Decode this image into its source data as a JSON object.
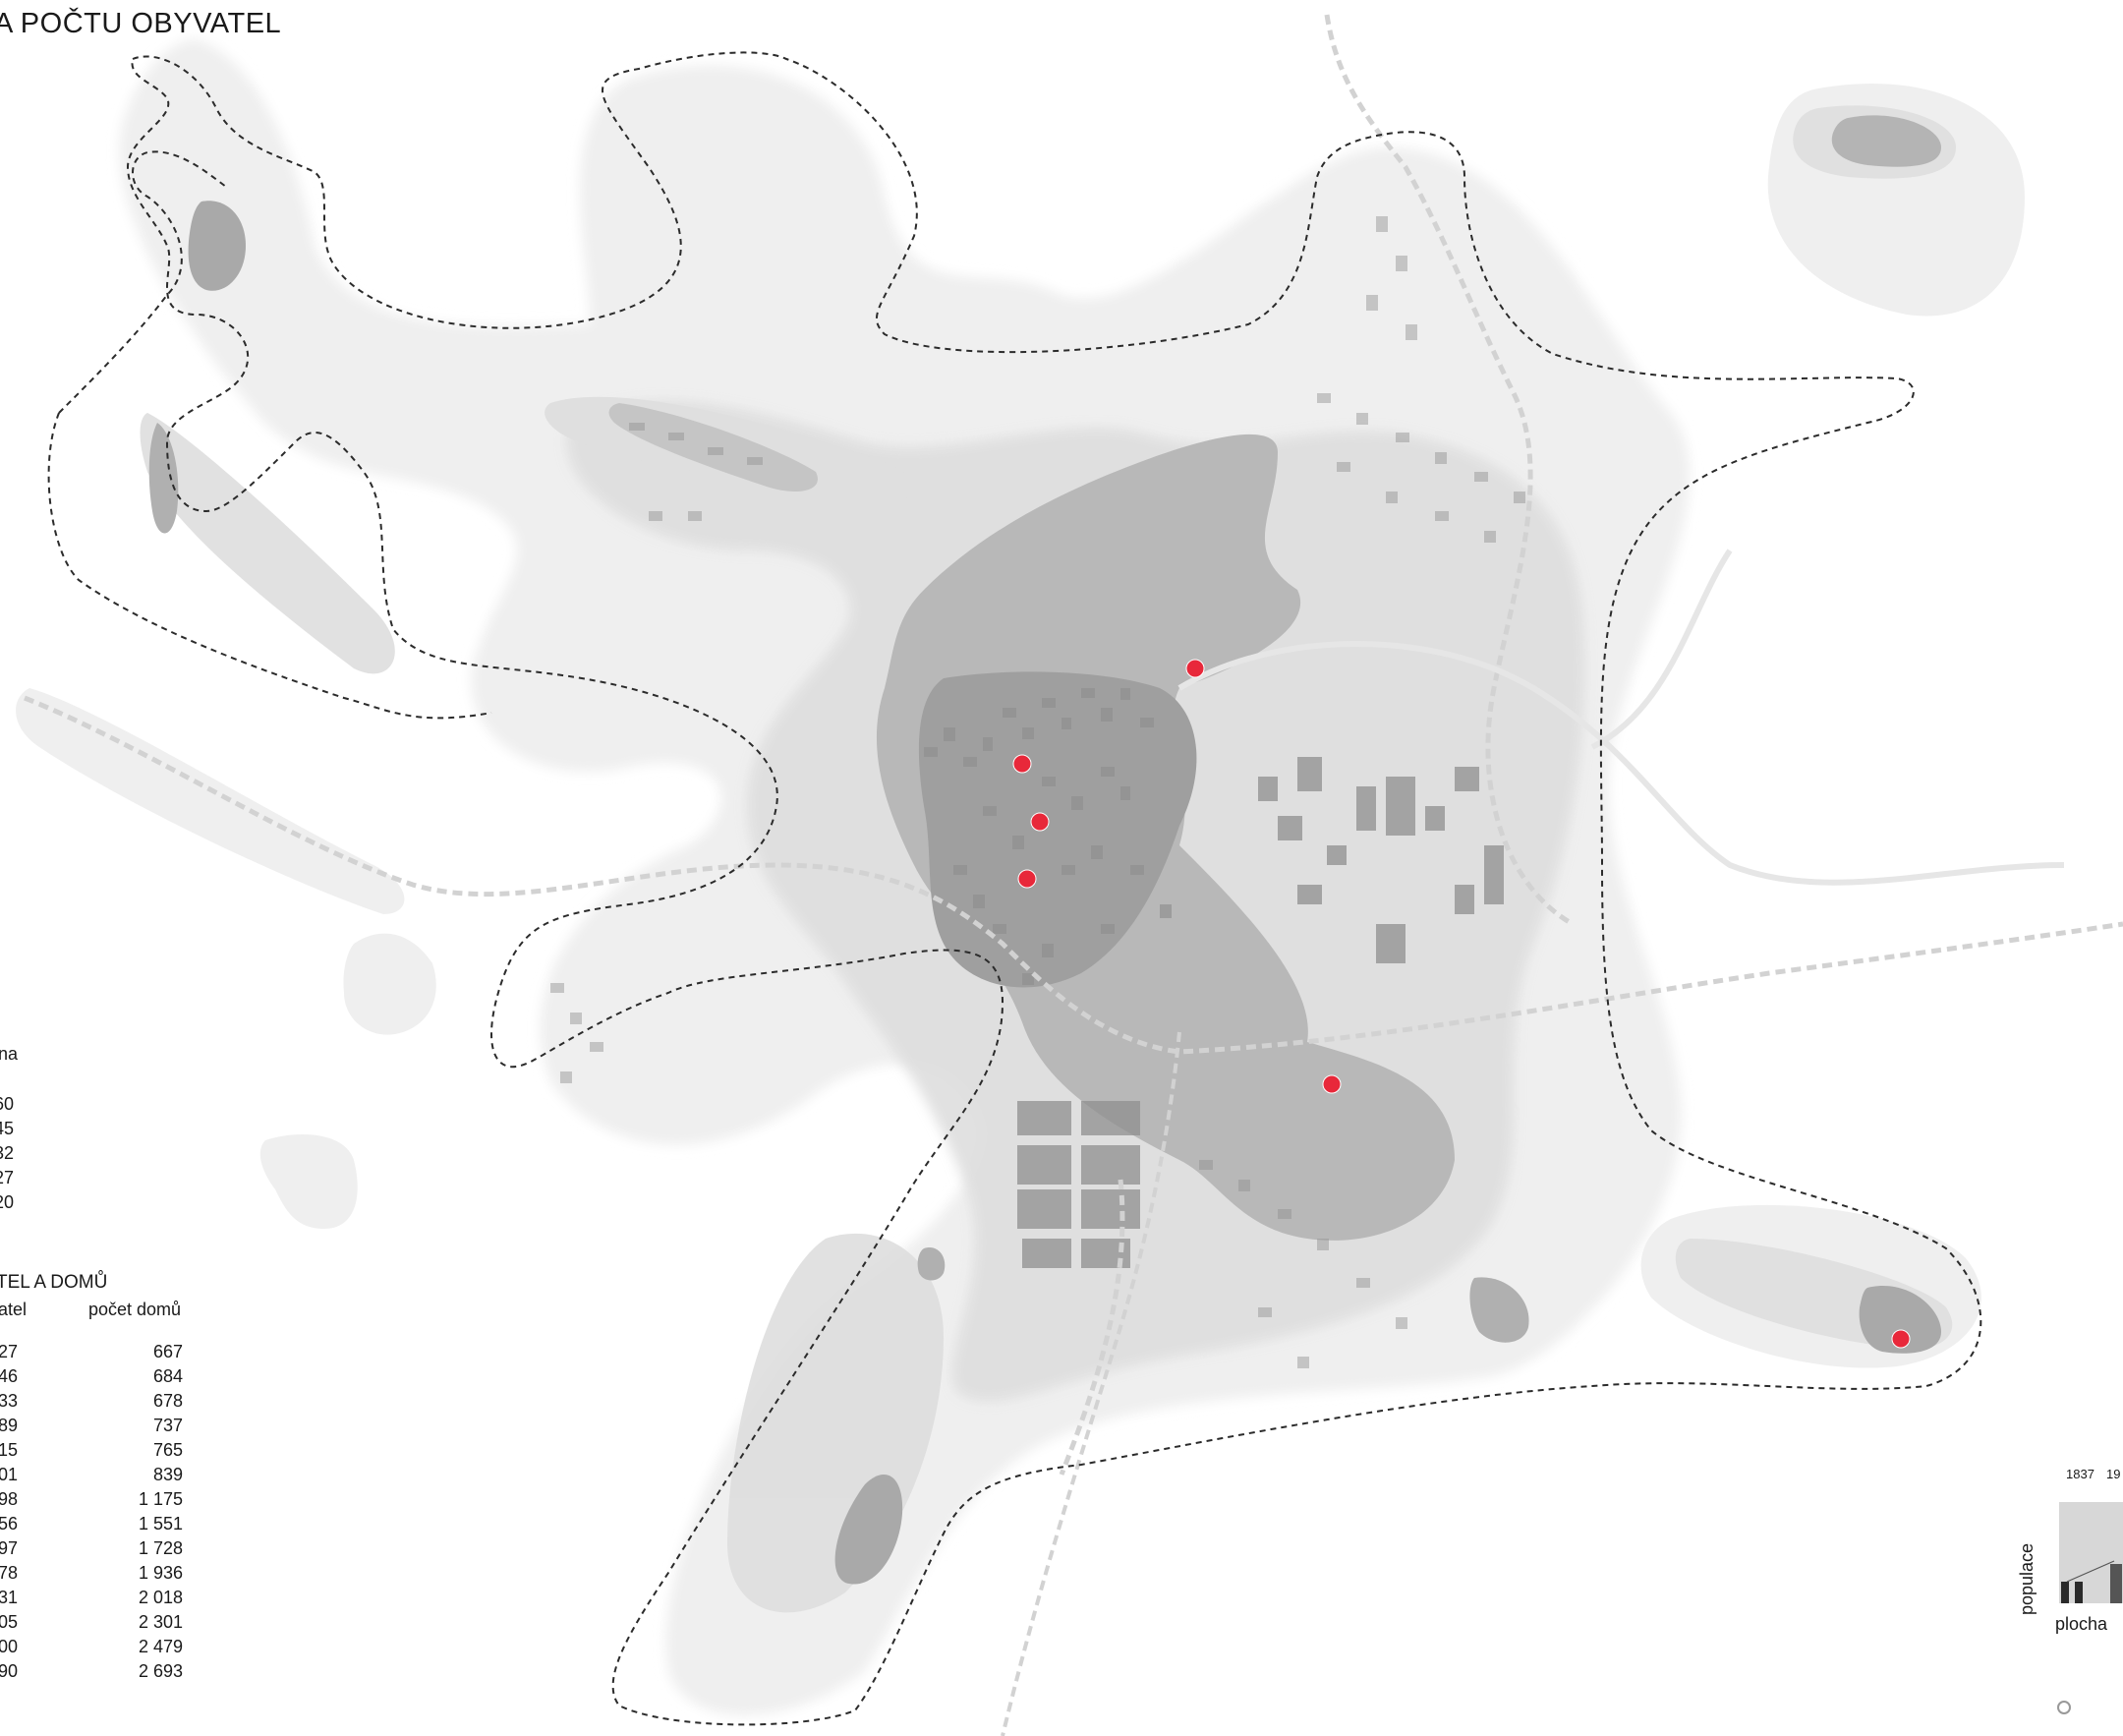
{
  "title": "A POČTU OBYVATEL",
  "area_legend": {
    "header": "na",
    "values": [
      "60",
      "45",
      "32",
      "27",
      "20"
    ]
  },
  "population_table": {
    "title": "TEL A DOMŮ",
    "col_population": "atel",
    "col_houses": "počet domů",
    "population": [
      "27",
      "46",
      "33",
      "89",
      "15",
      "01",
      "98",
      "56",
      "97",
      "78",
      "31",
      "05",
      "00",
      "90"
    ],
    "houses": [
      "667",
      "684",
      "678",
      "737",
      "765",
      "839",
      "1 175",
      "1 551",
      "1 728",
      "1 936",
      "2 018",
      "2 301",
      "2 479",
      "2 693"
    ]
  },
  "mini_chart": {
    "years": [
      "1837",
      "19"
    ],
    "y_label": "populace",
    "x_label": "plocha"
  },
  "colors": {
    "density_light": "#ececec",
    "density_mid": "#d9d9d9",
    "density_dark": "#a8a8a8",
    "building": "#8f8f8f",
    "marker": "#e8283a",
    "boundary": "#2b2b2b",
    "railway": "#d4d4d4"
  },
  "markers_count": 6
}
